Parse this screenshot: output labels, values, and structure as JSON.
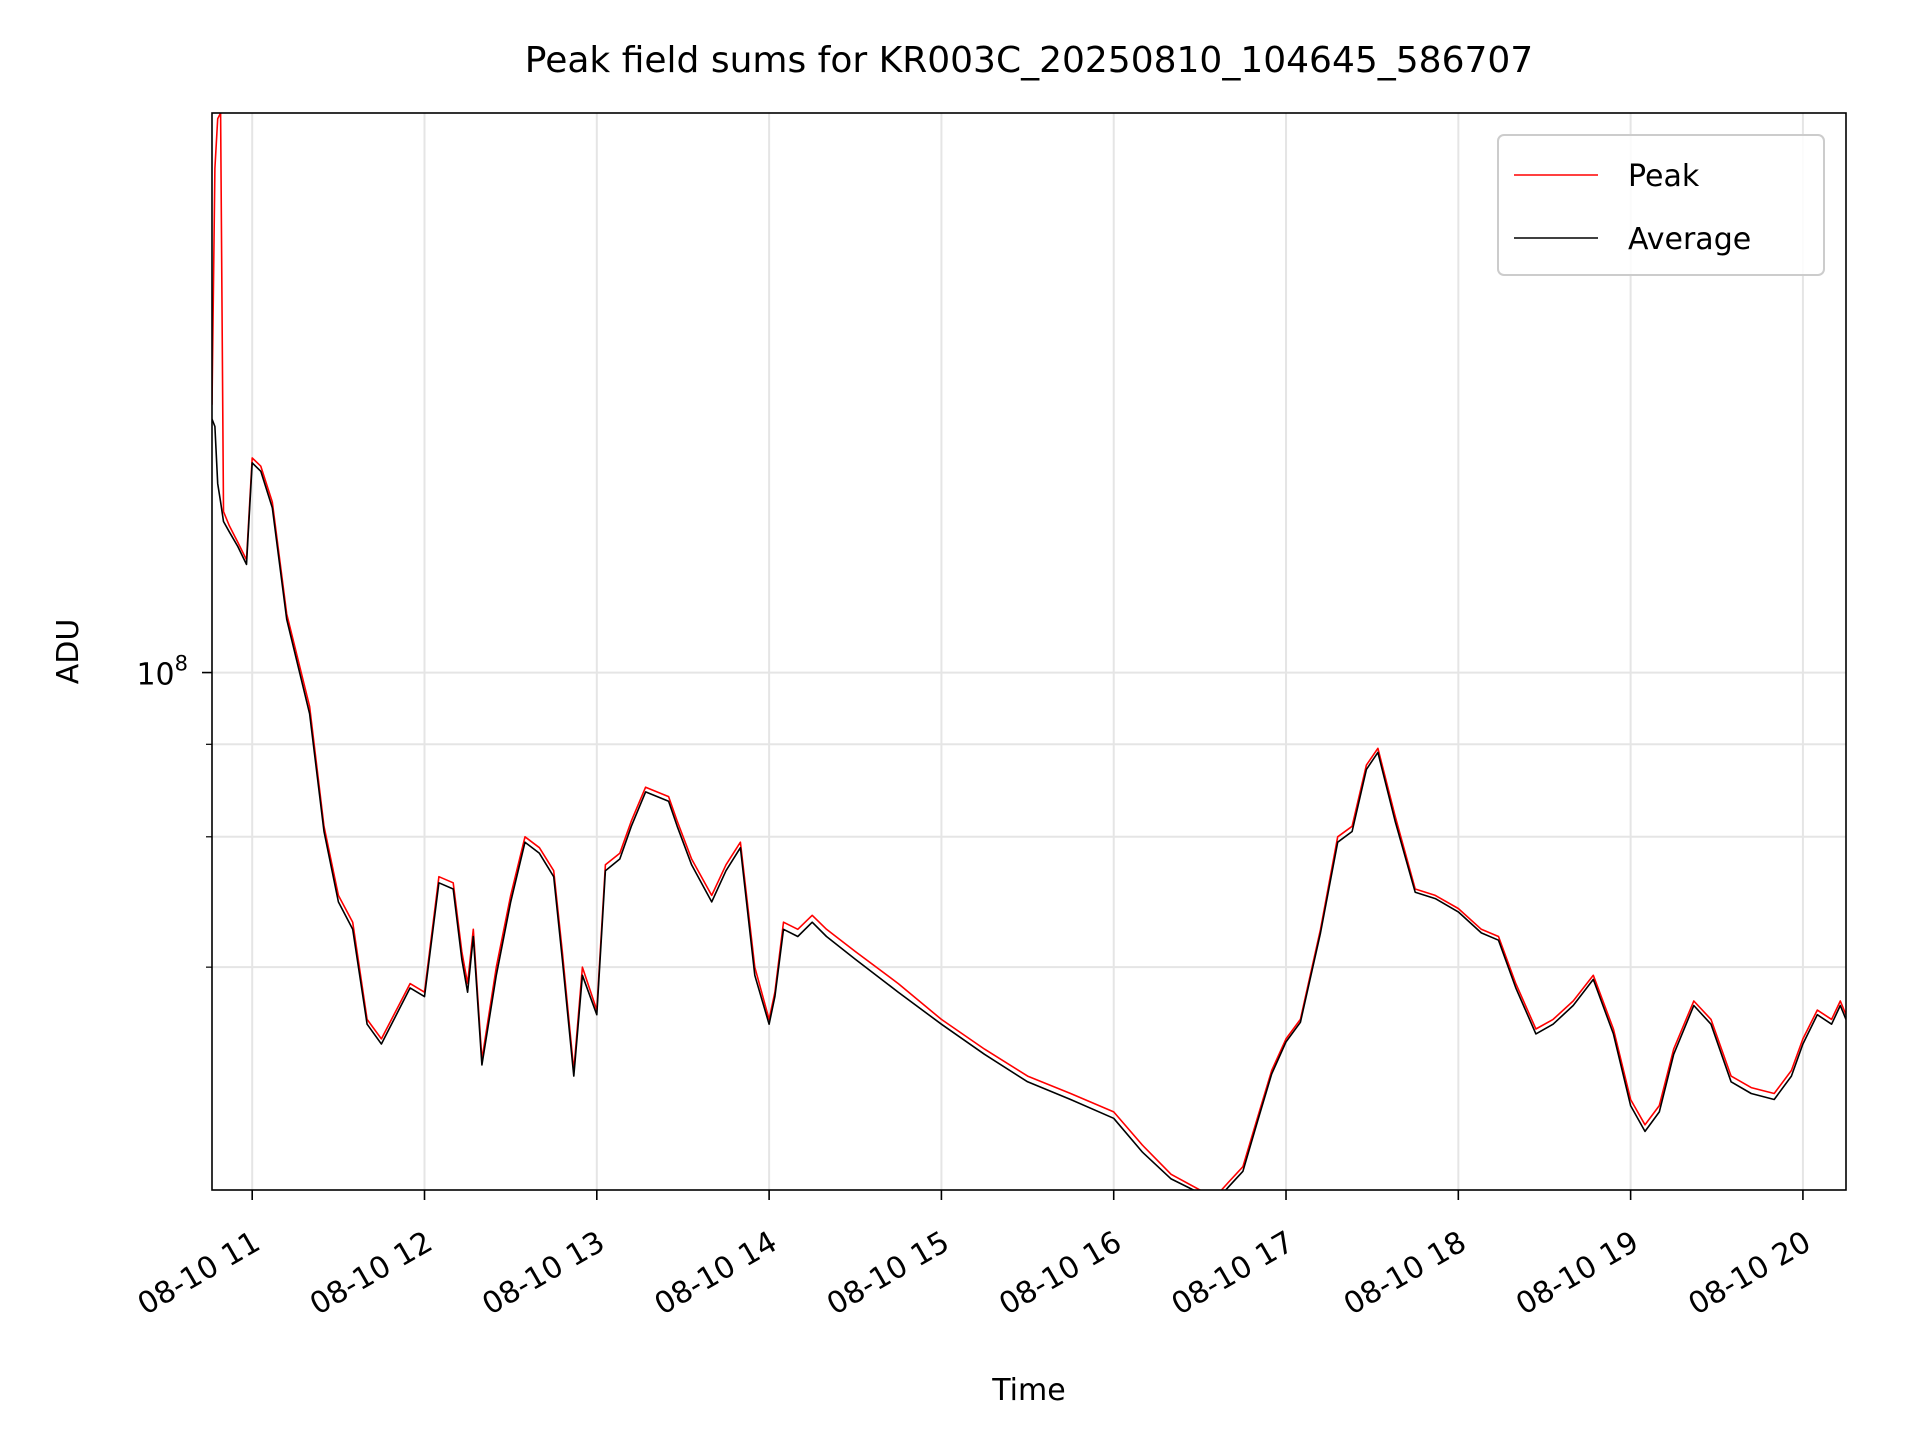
{
  "chart_data": {
    "type": "line",
    "title": "Peak field sums for KR003C_20250810_104645_586707",
    "xlabel": "Time",
    "ylabel": "ADU",
    "y_scale": "log",
    "ylim": [
      20000000,
      570000000
    ],
    "xlim": [
      "2025-08-10 10:46",
      "2025-08-10 20:15"
    ],
    "x_ticks": [
      "2025-08-10 11:00",
      "2025-08-10 12:00",
      "2025-08-10 13:00",
      "2025-08-10 14:00",
      "2025-08-10 15:00",
      "2025-08-10 16:00",
      "2025-08-10 17:00",
      "2025-08-10 18:00",
      "2025-08-10 19:00",
      "2025-08-10 20:00"
    ],
    "x_tick_labels": [
      "08-10 11",
      "08-10 12",
      "08-10 13",
      "08-10 14",
      "08-10 15",
      "08-10 16",
      "08-10 17",
      "08-10 18",
      "08-10 19",
      "08-10 20"
    ],
    "y_ticks": [
      {
        "value": 100000000,
        "base": "10",
        "exp": "8"
      }
    ],
    "y_minor_ticks": [
      40000000,
      60000000,
      80000000
    ],
    "grid": true,
    "legend": "top-right",
    "series": [
      {
        "name": "Peak",
        "color": "#ff0000",
        "points": [
          [
            "2025-08-10 10:46",
            230000000
          ],
          [
            "2025-08-10 10:47",
            480000000
          ],
          [
            "2025-08-10 10:48",
            560000000
          ],
          [
            "2025-08-10 10:49",
            570000000
          ],
          [
            "2025-08-10 10:50",
            165000000
          ],
          [
            "2025-08-10 10:52",
            158000000
          ],
          [
            "2025-08-10 10:55",
            150000000
          ],
          [
            "2025-08-10 10:58",
            142000000
          ],
          [
            "2025-08-10 11:00",
            195000000
          ],
          [
            "2025-08-10 11:03",
            190000000
          ],
          [
            "2025-08-10 11:07",
            170000000
          ],
          [
            "2025-08-10 11:12",
            120000000
          ],
          [
            "2025-08-10 11:20",
            90000000
          ],
          [
            "2025-08-10 11:25",
            62000000
          ],
          [
            "2025-08-10 11:30",
            50000000
          ],
          [
            "2025-08-10 11:35",
            46000000
          ],
          [
            "2025-08-10 11:40",
            34000000
          ],
          [
            "2025-08-10 11:45",
            32000000
          ],
          [
            "2025-08-10 11:55",
            38000000
          ],
          [
            "2025-08-10 12:00",
            37000000
          ],
          [
            "2025-08-10 12:05",
            53000000
          ],
          [
            "2025-08-10 12:10",
            52000000
          ],
          [
            "2025-08-10 12:13",
            42000000
          ],
          [
            "2025-08-10 12:15",
            38000000
          ],
          [
            "2025-08-10 12:17",
            45000000
          ],
          [
            "2025-08-10 12:20",
            30000000
          ],
          [
            "2025-08-10 12:25",
            40000000
          ],
          [
            "2025-08-10 12:30",
            50000000
          ],
          [
            "2025-08-10 12:35",
            60000000
          ],
          [
            "2025-08-10 12:40",
            58000000
          ],
          [
            "2025-08-10 12:45",
            54000000
          ],
          [
            "2025-08-10 12:48",
            42000000
          ],
          [
            "2025-08-10 12:52",
            29000000
          ],
          [
            "2025-08-10 12:55",
            40000000
          ],
          [
            "2025-08-10 13:00",
            35000000
          ],
          [
            "2025-08-10 13:03",
            55000000
          ],
          [
            "2025-08-10 13:08",
            57000000
          ],
          [
            "2025-08-10 13:12",
            63000000
          ],
          [
            "2025-08-10 13:17",
            70000000
          ],
          [
            "2025-08-10 13:25",
            68000000
          ],
          [
            "2025-08-10 13:28",
            63000000
          ],
          [
            "2025-08-10 13:33",
            56000000
          ],
          [
            "2025-08-10 13:40",
            50000000
          ],
          [
            "2025-08-10 13:45",
            55000000
          ],
          [
            "2025-08-10 13:50",
            59000000
          ],
          [
            "2025-08-10 13:55",
            40000000
          ],
          [
            "2025-08-10 14:00",
            34000000
          ],
          [
            "2025-08-10 14:02",
            37000000
          ],
          [
            "2025-08-10 14:05",
            46000000
          ],
          [
            "2025-08-10 14:10",
            45000000
          ],
          [
            "2025-08-10 14:15",
            47000000
          ],
          [
            "2025-08-10 14:20",
            45000000
          ],
          [
            "2025-08-10 14:30",
            42000000
          ],
          [
            "2025-08-10 14:45",
            38000000
          ],
          [
            "2025-08-10 15:00",
            34000000
          ],
          [
            "2025-08-10 15:15",
            31000000
          ],
          [
            "2025-08-10 15:30",
            28500000
          ],
          [
            "2025-08-10 15:45",
            27000000
          ],
          [
            "2025-08-10 16:00",
            25500000
          ],
          [
            "2025-08-10 16:10",
            23000000
          ],
          [
            "2025-08-10 16:20",
            21000000
          ],
          [
            "2025-08-10 16:30",
            20000000
          ],
          [
            "2025-08-10 16:35",
            19500000
          ],
          [
            "2025-08-10 16:40",
            20500000
          ],
          [
            "2025-08-10 16:45",
            21500000
          ],
          [
            "2025-08-10 16:50",
            25000000
          ],
          [
            "2025-08-10 16:55",
            29000000
          ],
          [
            "2025-08-10 17:00",
            32000000
          ],
          [
            "2025-08-10 17:05",
            34000000
          ],
          [
            "2025-08-10 17:12",
            45000000
          ],
          [
            "2025-08-10 17:18",
            60000000
          ],
          [
            "2025-08-10 17:23",
            62000000
          ],
          [
            "2025-08-10 17:28",
            75000000
          ],
          [
            "2025-08-10 17:32",
            79000000
          ],
          [
            "2025-08-10 17:38",
            64000000
          ],
          [
            "2025-08-10 17:45",
            51000000
          ],
          [
            "2025-08-10 17:52",
            50000000
          ],
          [
            "2025-08-10 18:00",
            48000000
          ],
          [
            "2025-08-10 18:08",
            45000000
          ],
          [
            "2025-08-10 18:14",
            44000000
          ],
          [
            "2025-08-10 18:20",
            38000000
          ],
          [
            "2025-08-10 18:27",
            33000000
          ],
          [
            "2025-08-10 18:33",
            34000000
          ],
          [
            "2025-08-10 18:40",
            36000000
          ],
          [
            "2025-08-10 18:47",
            39000000
          ],
          [
            "2025-08-10 18:54",
            33000000
          ],
          [
            "2025-08-10 19:00",
            26500000
          ],
          [
            "2025-08-10 19:05",
            24500000
          ],
          [
            "2025-08-10 19:10",
            26000000
          ],
          [
            "2025-08-10 19:15",
            31000000
          ],
          [
            "2025-08-10 19:22",
            36000000
          ],
          [
            "2025-08-10 19:28",
            34000000
          ],
          [
            "2025-08-10 19:35",
            28500000
          ],
          [
            "2025-08-10 19:42",
            27500000
          ],
          [
            "2025-08-10 19:50",
            27000000
          ],
          [
            "2025-08-10 19:56",
            29000000
          ],
          [
            "2025-08-10 20:00",
            32000000
          ],
          [
            "2025-08-10 20:05",
            35000000
          ],
          [
            "2025-08-10 20:10",
            34000000
          ],
          [
            "2025-08-10 20:13",
            36000000
          ],
          [
            "2025-08-10 20:15",
            34500000
          ]
        ]
      },
      {
        "name": "Average",
        "color": "#000000",
        "points": [
          [
            "2025-08-10 10:46",
            220000000
          ],
          [
            "2025-08-10 10:47",
            215000000
          ],
          [
            "2025-08-10 10:48",
            180000000
          ],
          [
            "2025-08-10 10:49",
            170000000
          ],
          [
            "2025-08-10 10:50",
            160000000
          ],
          [
            "2025-08-10 10:52",
            155000000
          ],
          [
            "2025-08-10 10:55",
            148000000
          ],
          [
            "2025-08-10 10:58",
            140000000
          ],
          [
            "2025-08-10 11:00",
            192000000
          ],
          [
            "2025-08-10 11:03",
            187000000
          ],
          [
            "2025-08-10 11:07",
            167000000
          ],
          [
            "2025-08-10 11:12",
            118000000
          ],
          [
            "2025-08-10 11:20",
            88000000
          ],
          [
            "2025-08-10 11:25",
            61000000
          ],
          [
            "2025-08-10 11:30",
            49000000
          ],
          [
            "2025-08-10 11:35",
            45000000
          ],
          [
            "2025-08-10 11:40",
            33500000
          ],
          [
            "2025-08-10 11:45",
            31500000
          ],
          [
            "2025-08-10 11:55",
            37500000
          ],
          [
            "2025-08-10 12:00",
            36500000
          ],
          [
            "2025-08-10 12:05",
            52000000
          ],
          [
            "2025-08-10 12:10",
            51000000
          ],
          [
            "2025-08-10 12:13",
            41000000
          ],
          [
            "2025-08-10 12:15",
            37000000
          ],
          [
            "2025-08-10 12:17",
            44000000
          ],
          [
            "2025-08-10 12:20",
            29500000
          ],
          [
            "2025-08-10 12:25",
            39000000
          ],
          [
            "2025-08-10 12:30",
            49000000
          ],
          [
            "2025-08-10 12:35",
            59000000
          ],
          [
            "2025-08-10 12:40",
            57000000
          ],
          [
            "2025-08-10 12:45",
            53000000
          ],
          [
            "2025-08-10 12:48",
            41000000
          ],
          [
            "2025-08-10 12:52",
            28500000
          ],
          [
            "2025-08-10 12:55",
            39000000
          ],
          [
            "2025-08-10 13:00",
            34500000
          ],
          [
            "2025-08-10 13:03",
            54000000
          ],
          [
            "2025-08-10 13:08",
            56000000
          ],
          [
            "2025-08-10 13:12",
            62000000
          ],
          [
            "2025-08-10 13:17",
            69000000
          ],
          [
            "2025-08-10 13:25",
            67000000
          ],
          [
            "2025-08-10 13:28",
            62000000
          ],
          [
            "2025-08-10 13:33",
            55000000
          ],
          [
            "2025-08-10 13:40",
            49000000
          ],
          [
            "2025-08-10 13:45",
            54000000
          ],
          [
            "2025-08-10 13:50",
            58000000
          ],
          [
            "2025-08-10 13:55",
            39000000
          ],
          [
            "2025-08-10 14:00",
            33500000
          ],
          [
            "2025-08-10 14:02",
            36500000
          ],
          [
            "2025-08-10 14:05",
            45000000
          ],
          [
            "2025-08-10 14:10",
            44000000
          ],
          [
            "2025-08-10 14:15",
            46000000
          ],
          [
            "2025-08-10 14:20",
            44000000
          ],
          [
            "2025-08-10 14:30",
            41000000
          ],
          [
            "2025-08-10 14:45",
            37000000
          ],
          [
            "2025-08-10 15:00",
            33500000
          ],
          [
            "2025-08-10 15:15",
            30500000
          ],
          [
            "2025-08-10 15:30",
            28000000
          ],
          [
            "2025-08-10 15:45",
            26500000
          ],
          [
            "2025-08-10 16:00",
            25000000
          ],
          [
            "2025-08-10 16:10",
            22500000
          ],
          [
            "2025-08-10 16:20",
            20700000
          ],
          [
            "2025-08-10 16:30",
            19800000
          ],
          [
            "2025-08-10 16:35",
            19200000
          ],
          [
            "2025-08-10 16:40",
            20200000
          ],
          [
            "2025-08-10 16:45",
            21200000
          ],
          [
            "2025-08-10 16:50",
            24700000
          ],
          [
            "2025-08-10 16:55",
            28700000
          ],
          [
            "2025-08-10 17:00",
            31700000
          ],
          [
            "2025-08-10 17:05",
            33700000
          ],
          [
            "2025-08-10 17:12",
            44500000
          ],
          [
            "2025-08-10 17:18",
            59000000
          ],
          [
            "2025-08-10 17:23",
            61000000
          ],
          [
            "2025-08-10 17:28",
            74000000
          ],
          [
            "2025-08-10 17:32",
            78000000
          ],
          [
            "2025-08-10 17:38",
            63000000
          ],
          [
            "2025-08-10 17:45",
            50500000
          ],
          [
            "2025-08-10 17:52",
            49500000
          ],
          [
            "2025-08-10 18:00",
            47500000
          ],
          [
            "2025-08-10 18:08",
            44500000
          ],
          [
            "2025-08-10 18:14",
            43500000
          ],
          [
            "2025-08-10 18:20",
            37500000
          ],
          [
            "2025-08-10 18:27",
            32500000
          ],
          [
            "2025-08-10 18:33",
            33500000
          ],
          [
            "2025-08-10 18:40",
            35500000
          ],
          [
            "2025-08-10 18:47",
            38500000
          ],
          [
            "2025-08-10 18:54",
            32500000
          ],
          [
            "2025-08-10 19:00",
            26000000
          ],
          [
            "2025-08-10 19:05",
            24000000
          ],
          [
            "2025-08-10 19:10",
            25500000
          ],
          [
            "2025-08-10 19:15",
            30500000
          ],
          [
            "2025-08-10 19:22",
            35500000
          ],
          [
            "2025-08-10 19:28",
            33500000
          ],
          [
            "2025-08-10 19:35",
            28000000
          ],
          [
            "2025-08-10 19:42",
            27000000
          ],
          [
            "2025-08-10 19:50",
            26500000
          ],
          [
            "2025-08-10 19:56",
            28500000
          ],
          [
            "2025-08-10 20:00",
            31500000
          ],
          [
            "2025-08-10 20:05",
            34500000
          ],
          [
            "2025-08-10 20:10",
            33500000
          ],
          [
            "2025-08-10 20:13",
            35500000
          ],
          [
            "2025-08-10 20:15",
            34000000
          ]
        ]
      }
    ]
  }
}
